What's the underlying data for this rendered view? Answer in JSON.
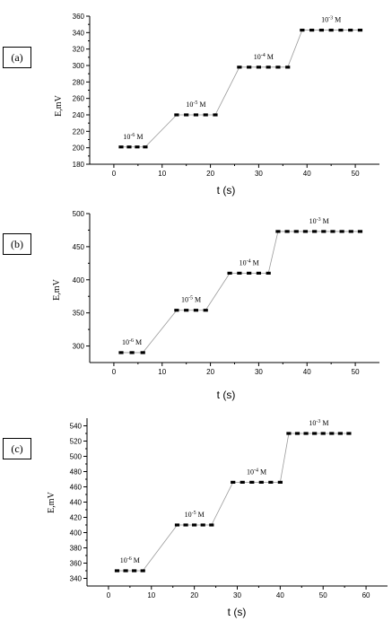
{
  "chart_data": [
    {
      "type": "line",
      "panel_label": "(a)",
      "ylabel": "E,mV",
      "xlabel": "t (s)",
      "xlim": [
        -5,
        55
      ],
      "ylim": [
        180,
        360
      ],
      "xticks": [
        0,
        10,
        20,
        30,
        40,
        50
      ],
      "yticks": [
        180,
        200,
        220,
        240,
        260,
        280,
        300,
        320,
        340,
        360
      ],
      "grid": false,
      "steps": [
        {
          "label_base": "10",
          "label_exp": "-6",
          "label_unit": "M",
          "x_start": 1.5,
          "x_end": 6.5,
          "y": 201
        },
        {
          "label_base": "10",
          "label_exp": "-5",
          "label_unit": "M",
          "x_start": 13,
          "x_end": 21,
          "y": 240
        },
        {
          "label_base": "10",
          "label_exp": "-4",
          "label_unit": "M",
          "x_start": 26,
          "x_end": 36,
          "y": 298
        },
        {
          "label_base": "10",
          "label_exp": "-3",
          "label_unit": "M",
          "x_start": 39,
          "x_end": 51,
          "y": 343
        }
      ]
    },
    {
      "type": "line",
      "panel_label": "(b)",
      "ylabel": "E,mV",
      "xlabel": "t (s)",
      "xlim": [
        -5,
        55
      ],
      "ylim": [
        275,
        500
      ],
      "xticks": [
        0,
        10,
        20,
        30,
        40,
        50
      ],
      "yticks": [
        300,
        350,
        400,
        450,
        500
      ],
      "grid": false,
      "steps": [
        {
          "label_base": "10",
          "label_exp": "-6",
          "label_unit": "M",
          "x_start": 1.5,
          "x_end": 6,
          "y": 290
        },
        {
          "label_base": "10",
          "label_exp": "-5",
          "label_unit": "M",
          "x_start": 13,
          "x_end": 19,
          "y": 354
        },
        {
          "label_base": "10",
          "label_exp": "-4",
          "label_unit": "M",
          "x_start": 24,
          "x_end": 32,
          "y": 410
        },
        {
          "label_base": "10",
          "label_exp": "-3",
          "label_unit": "M",
          "x_start": 34,
          "x_end": 51,
          "y": 473
        }
      ]
    },
    {
      "type": "line",
      "panel_label": "(c)",
      "ylabel": "E,mV",
      "xlabel": "t (s)",
      "xlim": [
        -5,
        65
      ],
      "ylim": [
        330,
        550
      ],
      "xticks": [
        0,
        10,
        20,
        30,
        40,
        50,
        60
      ],
      "yticks": [
        340,
        360,
        380,
        400,
        420,
        440,
        460,
        480,
        500,
        520,
        540
      ],
      "grid": false,
      "steps": [
        {
          "label_base": "10",
          "label_exp": "-6",
          "label_unit": "M",
          "x_start": 2,
          "x_end": 8,
          "y": 350
        },
        {
          "label_base": "10",
          "label_exp": "-5",
          "label_unit": "M",
          "x_start": 16,
          "x_end": 24,
          "y": 410
        },
        {
          "label_base": "10",
          "label_exp": "-4",
          "label_unit": "M",
          "x_start": 29,
          "x_end": 40,
          "y": 466
        },
        {
          "label_base": "10",
          "label_exp": "-3",
          "label_unit": "M",
          "x_start": 42,
          "x_end": 56,
          "y": 530
        }
      ]
    }
  ]
}
